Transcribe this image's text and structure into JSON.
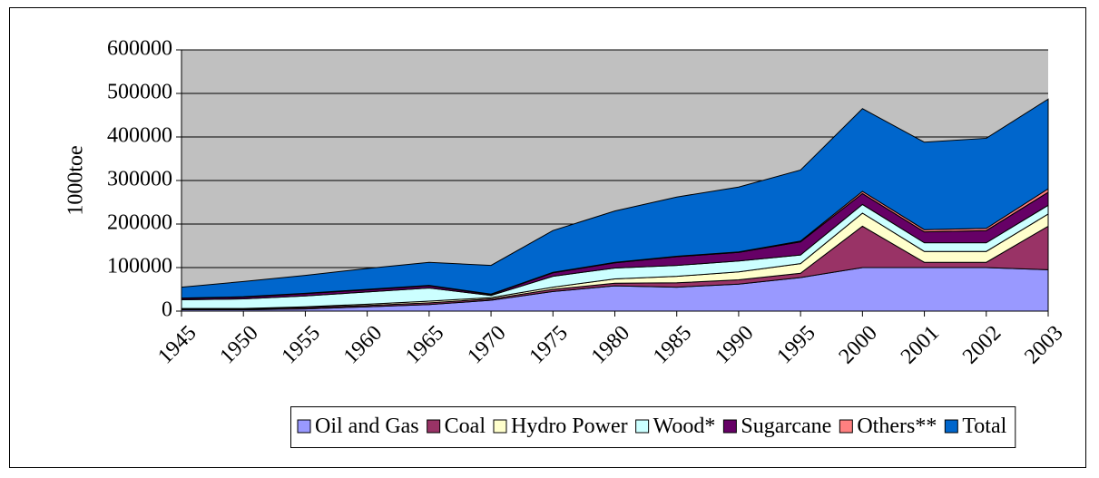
{
  "chart_data": {
    "type": "stacked-area",
    "y_label": "1000toe",
    "categories": [
      "1945",
      "1950",
      "1955",
      "1960",
      "1965",
      "1970",
      "1975",
      "1980",
      "1985",
      "1990",
      "1995",
      "2000",
      "2001",
      "2002",
      "2003"
    ],
    "series": [
      {
        "name": "Oil and Gas",
        "color": "#9999ff",
        "values": [
          3000,
          3000,
          5000,
          10000,
          15000,
          25000,
          45000,
          58000,
          55000,
          62000,
          77000,
          100000,
          100000,
          100000,
          95000
        ]
      },
      {
        "name": "Coal",
        "color": "#993366",
        "values": [
          2000,
          2000,
          3000,
          3000,
          4000,
          3000,
          5000,
          6000,
          10000,
          10000,
          10000,
          95000,
          12000,
          12000,
          100000
        ]
      },
      {
        "name": "Hydro Power",
        "color": "#ffffcc",
        "values": [
          1000,
          1000,
          2000,
          3000,
          4000,
          3000,
          5000,
          10000,
          15000,
          18000,
          22000,
          30000,
          25000,
          25000,
          28000
        ]
      },
      {
        "name": "Wood*",
        "color": "#ccffff",
        "values": [
          20000,
          22000,
          25000,
          28000,
          30000,
          5000,
          25000,
          25000,
          25000,
          25000,
          20000,
          20000,
          20000,
          20000,
          20000
        ]
      },
      {
        "name": "Sugarcane",
        "color": "#660066",
        "values": [
          3000,
          4000,
          5000,
          5000,
          5000,
          2000,
          8000,
          12000,
          20000,
          20000,
          30000,
          25000,
          25000,
          28000,
          30000
        ]
      },
      {
        "name": "Others**",
        "color": "#ff8080",
        "values": [
          1000,
          1000,
          1000,
          1000,
          1000,
          1000,
          1000,
          1000,
          1000,
          1000,
          2000,
          5000,
          5000,
          5000,
          8000
        ]
      },
      {
        "name": "Total",
        "color": "#0066cc",
        "values": [
          25000,
          35000,
          41000,
          48000,
          53000,
          66000,
          96000,
          118000,
          136000,
          149000,
          163000,
          190000,
          201000,
          207000,
          206000
        ]
      }
    ],
    "ylim": [
      0,
      600000
    ],
    "yticks": [
      0,
      100000,
      200000,
      300000,
      400000,
      500000,
      600000
    ],
    "grid": true,
    "legend": "bottom",
    "plot_background": "#c0c0c0"
  }
}
